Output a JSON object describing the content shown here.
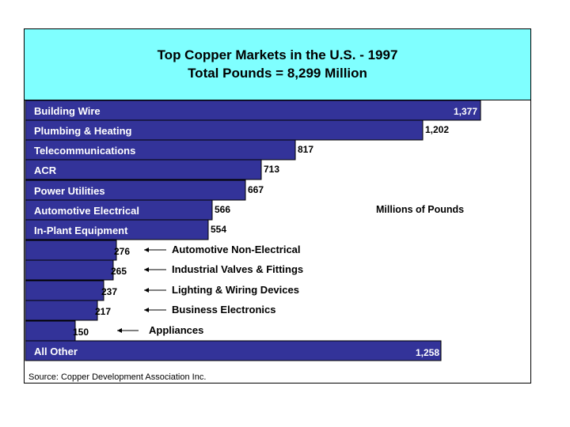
{
  "colors": {
    "bar": "#333399",
    "header_bg": "#7fffff",
    "text": "#000000",
    "bar_text": "#ffffff"
  },
  "header": {
    "title": "Top Copper Markets in the U.S. - 1997",
    "subtitle": "Total Pounds = 8,299 Million"
  },
  "units_label": "Millions of Pounds",
  "source": "Source: Copper Development Association Inc.",
  "chart_data": {
    "type": "bar",
    "orientation": "horizontal",
    "title": "Top Copper Markets in the U.S. - 1997",
    "subtitle": "Total Pounds = 8,299 Million",
    "unit": "Millions of Pounds",
    "categories": [
      "Building Wire",
      "Plumbing & Heating",
      "Telecommunications",
      "ACR",
      "Power Utilities",
      "Automotive Electrical",
      "In-Plant Equipment",
      "Automotive Non-Electrical",
      "Industrial Valves & Fittings",
      "Lighting & Wiring Devices",
      "Business Electronics",
      "Appliances",
      "All Other"
    ],
    "values": [
      1377,
      1202,
      817,
      713,
      667,
      566,
      554,
      276,
      265,
      237,
      217,
      150,
      1258
    ],
    "value_labels": [
      "1,377",
      "1,202",
      "817",
      "713",
      "667",
      "566",
      "554",
      "276",
      "265",
      "237",
      "217",
      "150",
      "1,258"
    ],
    "label_placement": [
      "inside",
      "inside",
      "inside",
      "inside",
      "inside",
      "inside",
      "inside",
      "outside-arrow",
      "outside-arrow",
      "outside-arrow",
      "outside-arrow",
      "outside-arrow",
      "inside"
    ],
    "grid": false,
    "legend": "none"
  }
}
